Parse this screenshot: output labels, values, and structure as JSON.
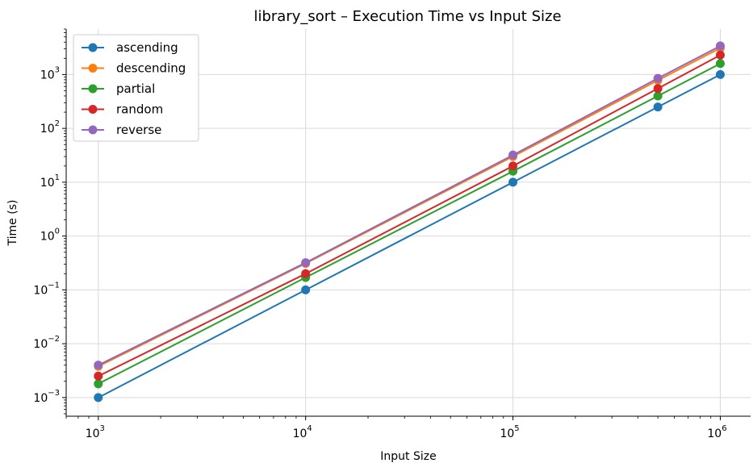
{
  "chart_data": {
    "type": "line",
    "title": "library_sort – Execution Time vs Input Size",
    "xlabel": "Input Size",
    "ylabel": "Time (s)",
    "xscale": "log",
    "yscale": "log",
    "xlim": [
      700,
      1400000
    ],
    "ylim": [
      0.00045,
      7000
    ],
    "grid": true,
    "legend_position": "top-left",
    "x": [
      1000,
      10000,
      100000,
      500000,
      1000000
    ],
    "x_ticks": [
      {
        "value": 1000,
        "base": "10",
        "exp": "3"
      },
      {
        "value": 10000,
        "base": "10",
        "exp": "4"
      },
      {
        "value": 100000,
        "base": "10",
        "exp": "5"
      },
      {
        "value": 1000000,
        "base": "10",
        "exp": "6"
      }
    ],
    "y_ticks": [
      {
        "value": 0.001,
        "base": "10",
        "exp": "−3"
      },
      {
        "value": 0.01,
        "base": "10",
        "exp": "−2"
      },
      {
        "value": 0.1,
        "base": "10",
        "exp": "−1"
      },
      {
        "value": 1,
        "base": "10",
        "exp": "0"
      },
      {
        "value": 10,
        "base": "10",
        "exp": "1"
      },
      {
        "value": 100,
        "base": "10",
        "exp": "2"
      },
      {
        "value": 1000,
        "base": "10",
        "exp": "3"
      }
    ],
    "series": [
      {
        "name": "ascending",
        "color": "#1f77b4",
        "values": [
          0.001,
          0.1,
          10,
          250,
          1000
        ]
      },
      {
        "name": "descending",
        "color": "#ff7f0e",
        "values": [
          0.0038,
          0.31,
          30,
          780,
          3100
        ]
      },
      {
        "name": "partial",
        "color": "#2ca02c",
        "values": [
          0.0018,
          0.17,
          16,
          400,
          1600
        ]
      },
      {
        "name": "random",
        "color": "#d62728",
        "values": [
          0.0025,
          0.2,
          20,
          550,
          2300
        ]
      },
      {
        "name": "reverse",
        "color": "#9467bd",
        "values": [
          0.004,
          0.32,
          32,
          850,
          3400
        ]
      }
    ]
  }
}
